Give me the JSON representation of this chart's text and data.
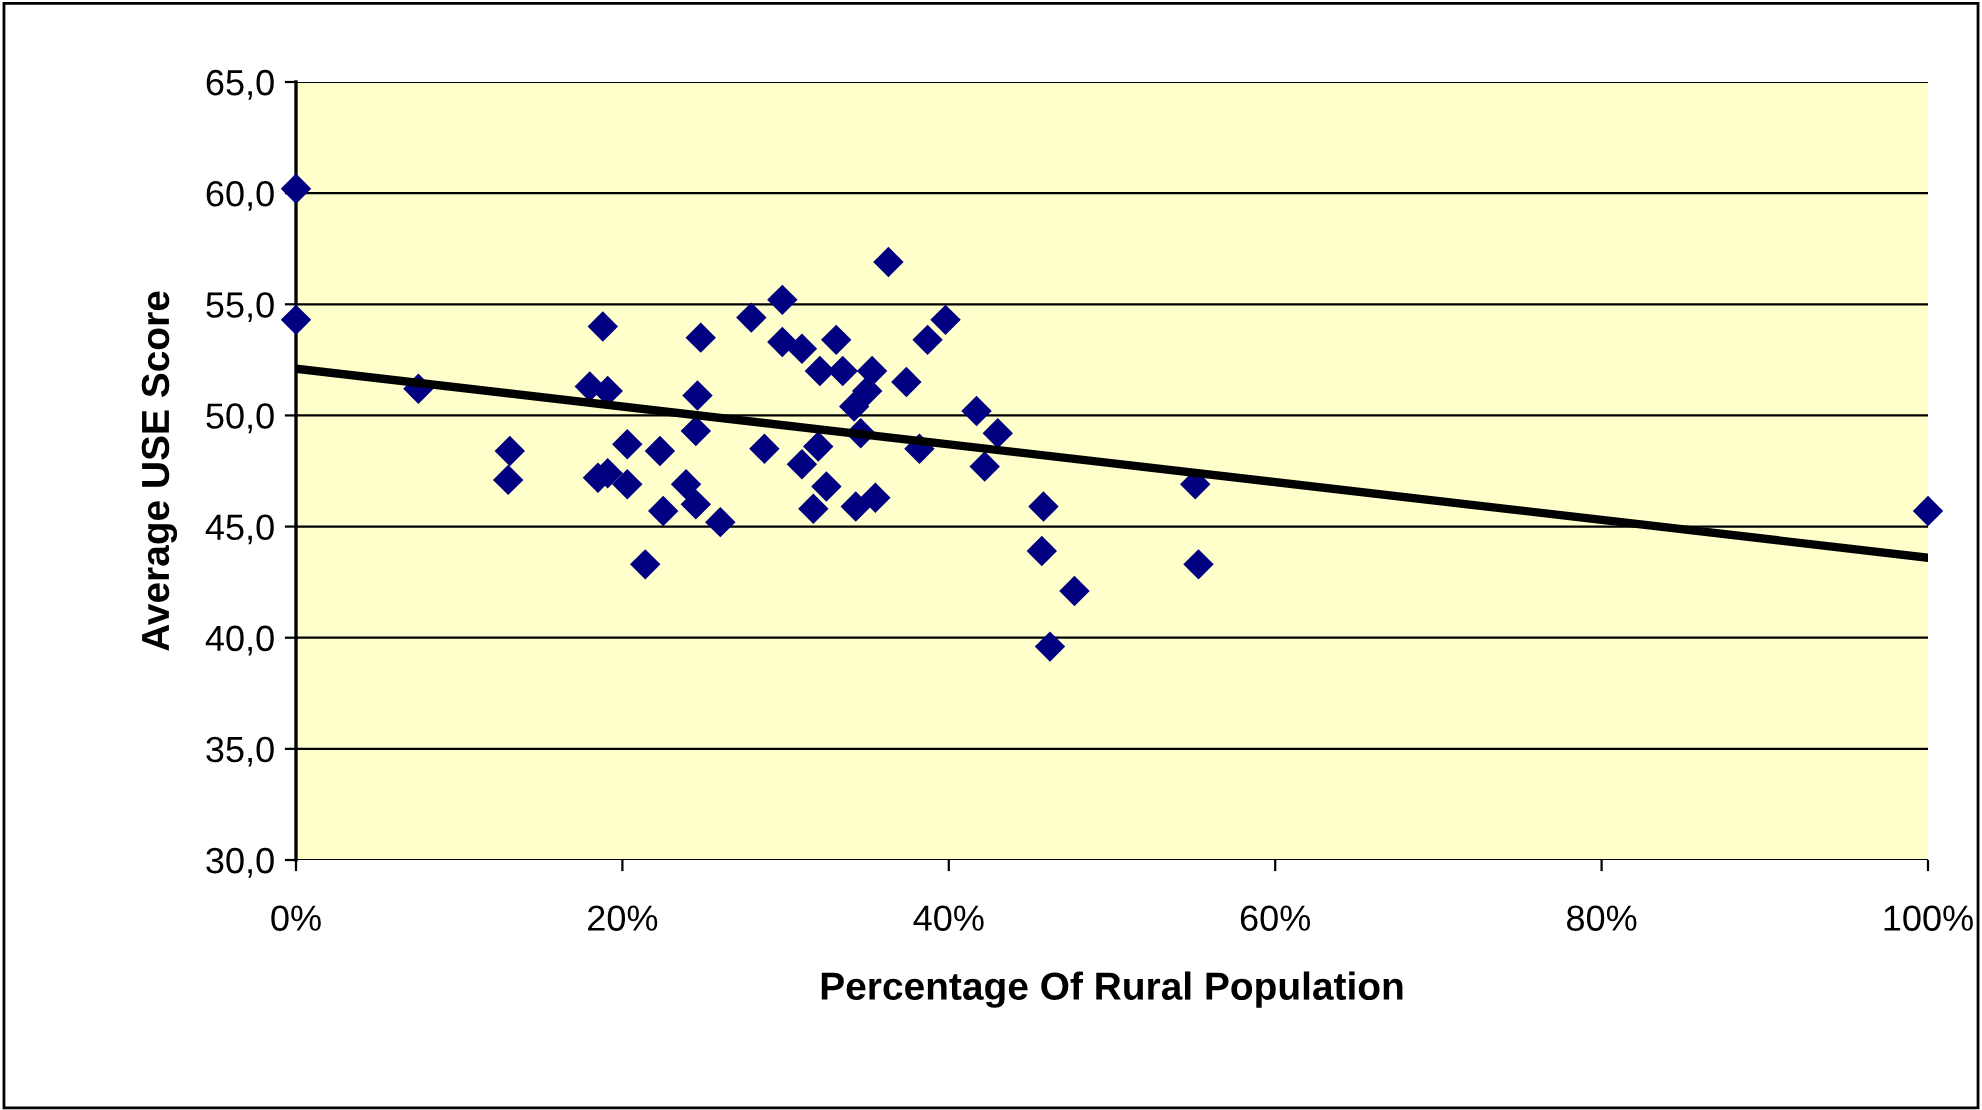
{
  "chart_data": {
    "type": "scatter",
    "xlabel": "Percentage Of Rural Population",
    "ylabel": "Average USE Score",
    "xlim": [
      0,
      100
    ],
    "ylim": [
      30,
      65
    ],
    "xticks": [
      {
        "value": 0,
        "label": "0%"
      },
      {
        "value": 20,
        "label": "20%"
      },
      {
        "value": 40,
        "label": "40%"
      },
      {
        "value": 60,
        "label": "60%"
      },
      {
        "value": 80,
        "label": "80%"
      },
      {
        "value": 100,
        "label": "100%"
      }
    ],
    "yticks": [
      {
        "value": 30,
        "label": "30,0"
      },
      {
        "value": 35,
        "label": "35,0"
      },
      {
        "value": 40,
        "label": "40,0"
      },
      {
        "value": 45,
        "label": "45,0"
      },
      {
        "value": 50,
        "label": "50,0"
      },
      {
        "value": 55,
        "label": "55,0"
      },
      {
        "value": 60,
        "label": "60,0"
      },
      {
        "value": 65,
        "label": "65,0"
      }
    ],
    "grid": "y",
    "legend": false,
    "series": [
      {
        "color": "#000080",
        "marker": "diamond",
        "x": [
          0,
          0,
          7.5,
          13.1,
          13.0,
          18.8,
          18.0,
          19.1,
          20.3,
          18.5,
          19.1,
          20.3,
          21.4,
          36.3,
          29.8,
          27.9,
          24.8,
          39.8,
          38.7,
          29.8,
          31.0,
          33.1,
          32.1,
          33.5,
          35.3,
          37.4,
          35.0,
          34.2,
          24.6,
          24.5,
          22.3,
          28.7,
          32.0,
          31.0,
          34.6,
          38.2,
          41.7,
          43.0,
          42.2,
          23.9,
          24.5,
          26.0,
          32.5,
          31.7,
          34.3,
          35.5,
          22.5,
          45.8,
          45.7,
          47.7,
          46.2,
          55.1,
          55.3,
          100
        ],
        "values": [
          60.2,
          54.3,
          51.2,
          48.4,
          47.1,
          54.0,
          51.3,
          51.1,
          48.7,
          47.2,
          47.4,
          46.9,
          43.3,
          56.9,
          55.2,
          54.4,
          53.5,
          54.3,
          53.4,
          53.3,
          53.0,
          53.4,
          52.0,
          52.0,
          52.0,
          51.5,
          51.1,
          50.4,
          50.9,
          49.3,
          48.4,
          48.5,
          48.6,
          47.8,
          49.2,
          48.5,
          50.2,
          49.2,
          47.7,
          46.9,
          46.0,
          45.2,
          46.8,
          45.8,
          45.9,
          46.3,
          45.7,
          45.9,
          43.9,
          42.1,
          39.6,
          46.9,
          43.3,
          45.7
        ]
      },
      {
        "type": "line",
        "color": "#000000",
        "marker": "none",
        "line_style": "solid",
        "x": [
          0,
          100
        ],
        "values": [
          52.1,
          43.6
        ]
      }
    ]
  }
}
